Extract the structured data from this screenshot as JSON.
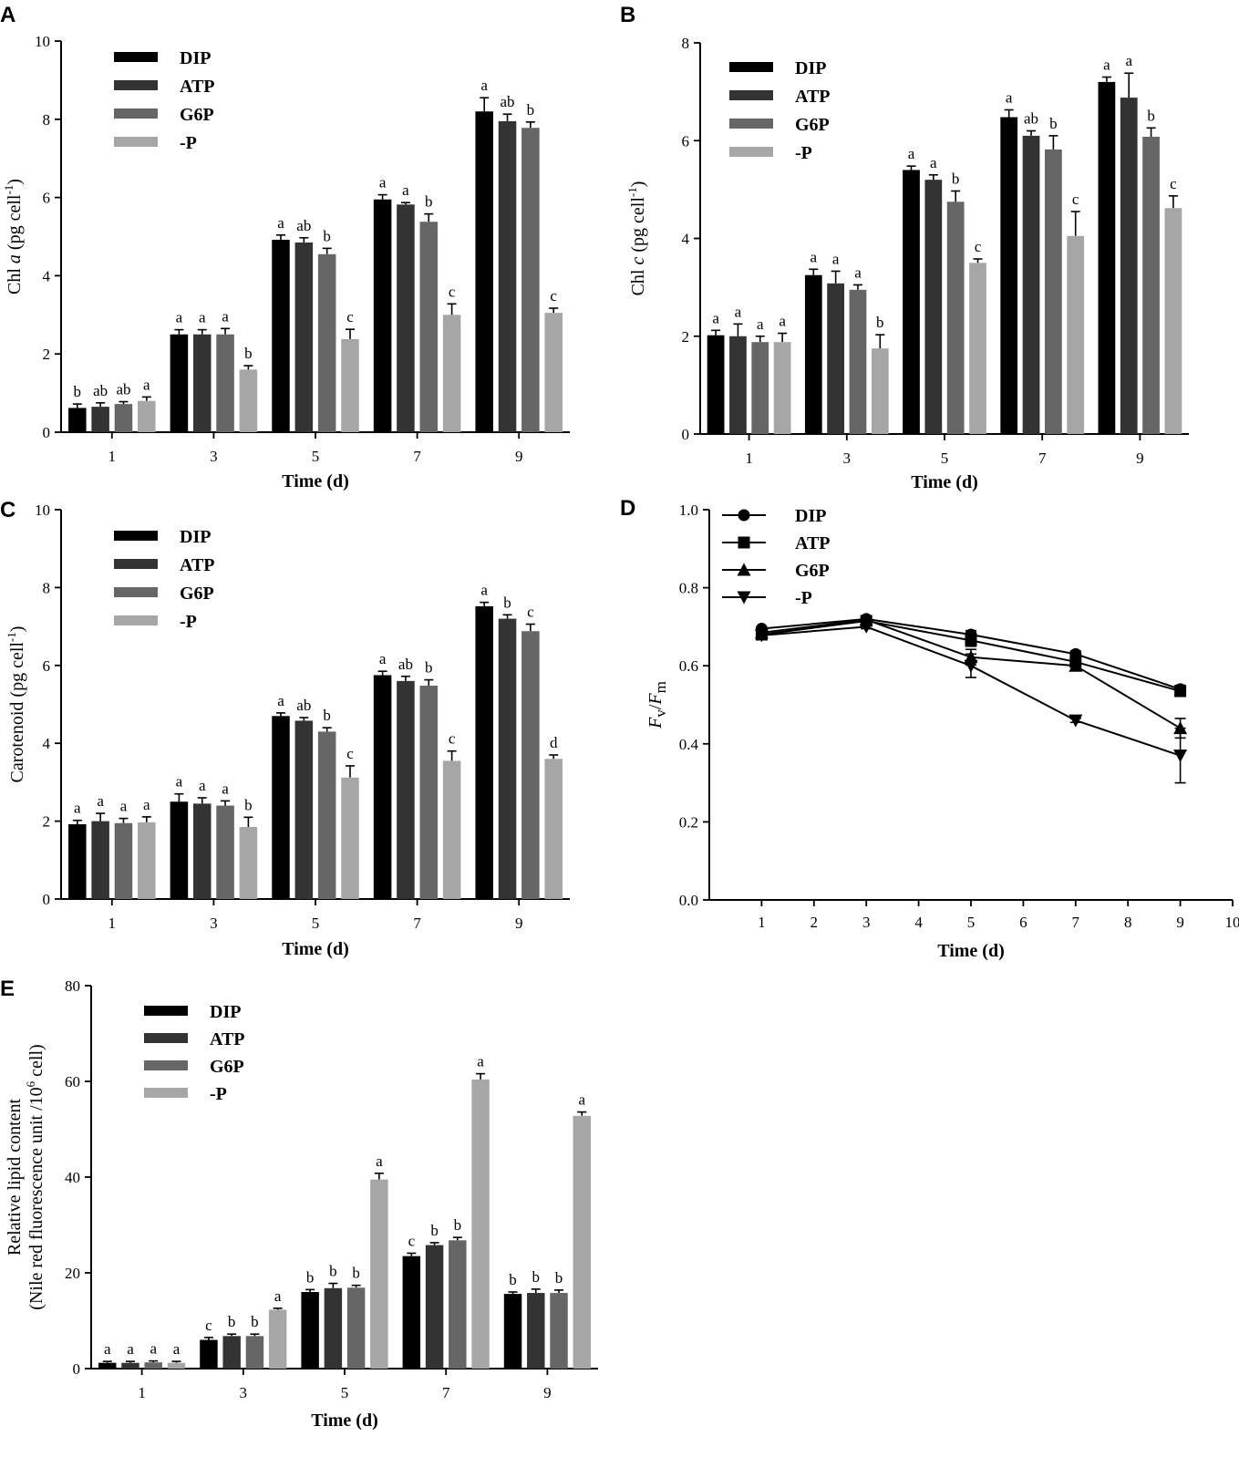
{
  "colors": {
    "DIP": "#000000",
    "ATP": "#333333",
    "G6P": "#666666",
    "-P": "#a6a6a6"
  },
  "chart_data": [
    {
      "panel": "A",
      "type": "bar",
      "xlabel": "Time (d)",
      "ylabel_parts": [
        "Chl ",
        "a",
        " (pg cell",
        "-1",
        ")"
      ],
      "ylim": [
        0,
        10
      ],
      "yticks": [
        "0",
        "2",
        "4",
        "6",
        "8",
        "10"
      ],
      "categories": [
        "1",
        "3",
        "5",
        "7",
        "9"
      ],
      "series": [
        {
          "name": "DIP",
          "values": [
            0.62,
            2.5,
            4.92,
            5.95,
            8.2
          ],
          "errors": [
            0.1,
            0.12,
            0.12,
            0.12,
            0.35
          ],
          "labels": [
            "b",
            "a",
            "a",
            "a",
            "a"
          ]
        },
        {
          "name": "ATP",
          "values": [
            0.65,
            2.5,
            4.85,
            5.82,
            7.95
          ],
          "errors": [
            0.1,
            0.12,
            0.12,
            0.05,
            0.18
          ],
          "labels": [
            "ab",
            "a",
            "ab",
            "a",
            "ab"
          ]
        },
        {
          "name": "G6P",
          "values": [
            0.72,
            2.5,
            4.55,
            5.38,
            7.78
          ],
          "errors": [
            0.06,
            0.15,
            0.15,
            0.2,
            0.15
          ],
          "labels": [
            "ab",
            "a",
            "b",
            "b",
            "b"
          ]
        },
        {
          "name": "-P",
          "values": [
            0.8,
            1.6,
            2.38,
            3.0,
            3.05
          ],
          "errors": [
            0.1,
            0.1,
            0.25,
            0.28,
            0.12
          ],
          "labels": [
            "a",
            "b",
            "c",
            "c",
            "c"
          ]
        }
      ],
      "legend": [
        "DIP",
        "ATP",
        "G6P",
        "-P"
      ]
    },
    {
      "panel": "B",
      "type": "bar",
      "xlabel": "Time (d)",
      "ylabel_parts": [
        "Chl ",
        "c",
        " (pg cell",
        "-1",
        ")"
      ],
      "ylim": [
        0,
        8
      ],
      "yticks": [
        "0",
        "2",
        "4",
        "6",
        "8"
      ],
      "categories": [
        "1",
        "3",
        "5",
        "7",
        "9"
      ],
      "series": [
        {
          "name": "DIP",
          "values": [
            2.02,
            3.25,
            5.4,
            6.48,
            7.2
          ],
          "errors": [
            0.1,
            0.12,
            0.08,
            0.15,
            0.1
          ],
          "labels": [
            "a",
            "a",
            "a",
            "a",
            "a"
          ]
        },
        {
          "name": "ATP",
          "values": [
            2.0,
            3.08,
            5.2,
            6.1,
            6.88
          ],
          "errors": [
            0.25,
            0.25,
            0.1,
            0.1,
            0.5
          ],
          "labels": [
            "a",
            "a",
            "a",
            "ab",
            "a"
          ]
        },
        {
          "name": "G6P",
          "values": [
            1.88,
            2.95,
            4.75,
            5.82,
            6.08
          ],
          "errors": [
            0.12,
            0.1,
            0.22,
            0.28,
            0.18
          ],
          "labels": [
            "a",
            "a",
            "b",
            "b",
            "b"
          ]
        },
        {
          "name": "-P",
          "values": [
            1.88,
            1.75,
            3.5,
            4.05,
            4.62
          ],
          "errors": [
            0.18,
            0.28,
            0.08,
            0.5,
            0.25
          ],
          "labels": [
            "a",
            "b",
            "c",
            "c",
            "c"
          ]
        }
      ],
      "legend": [
        "DIP",
        "ATP",
        "G6P",
        "-P"
      ]
    },
    {
      "panel": "C",
      "type": "bar",
      "xlabel": "Time (d)",
      "ylabel_parts": [
        "Carotenoid (pg cell",
        "-1",
        ")"
      ],
      "ylim": [
        0,
        10
      ],
      "yticks": [
        "0",
        "2",
        "4",
        "6",
        "8",
        "10"
      ],
      "categories": [
        "1",
        "3",
        "5",
        "7",
        "9"
      ],
      "series": [
        {
          "name": "DIP",
          "values": [
            1.92,
            2.5,
            4.7,
            5.75,
            7.52
          ],
          "errors": [
            0.1,
            0.2,
            0.08,
            0.1,
            0.1
          ],
          "labels": [
            "a",
            "a",
            "a",
            "a",
            "a"
          ]
        },
        {
          "name": "ATP",
          "values": [
            2.0,
            2.45,
            4.58,
            5.6,
            7.2
          ],
          "errors": [
            0.2,
            0.15,
            0.08,
            0.12,
            0.1
          ],
          "labels": [
            "a",
            "a",
            "ab",
            "ab",
            "b"
          ]
        },
        {
          "name": "G6P",
          "values": [
            1.95,
            2.4,
            4.3,
            5.48,
            6.88
          ],
          "errors": [
            0.12,
            0.12,
            0.1,
            0.15,
            0.18
          ],
          "labels": [
            "a",
            "a",
            "b",
            "b",
            "c"
          ]
        },
        {
          "name": "-P",
          "values": [
            1.97,
            1.85,
            3.12,
            3.55,
            3.6
          ],
          "errors": [
            0.14,
            0.25,
            0.3,
            0.25,
            0.1
          ],
          "labels": [
            "a",
            "b",
            "c",
            "c",
            "d"
          ]
        }
      ],
      "legend": [
        "DIP",
        "ATP",
        "G6P",
        "-P"
      ]
    },
    {
      "panel": "D",
      "type": "line",
      "xlabel": "Time (d)",
      "ylabel_parts": [
        "F",
        "v",
        "/",
        "F",
        "m"
      ],
      "xlim": [
        0,
        10
      ],
      "xticks": [
        "1",
        "2",
        "3",
        "4",
        "5",
        "6",
        "7",
        "8",
        "9",
        "10"
      ],
      "ylim": [
        0.0,
        1.0
      ],
      "yticks": [
        "0.0",
        "0.2",
        "0.4",
        "0.6",
        "0.8",
        "1.0"
      ],
      "x": [
        1,
        3,
        5,
        7,
        9
      ],
      "series": [
        {
          "name": "DIP",
          "marker": "circle",
          "values": [
            0.695,
            0.72,
            0.68,
            0.63,
            0.54
          ],
          "errors": [
            0.005,
            0.005,
            0.01,
            0.008,
            0.01
          ]
        },
        {
          "name": "ATP",
          "marker": "square",
          "values": [
            0.68,
            0.715,
            0.665,
            0.61,
            0.535
          ],
          "errors": [
            0.005,
            0.005,
            0.015,
            0.01,
            0.01
          ]
        },
        {
          "name": "G6P",
          "marker": "triangle-up",
          "values": [
            0.685,
            0.718,
            0.622,
            0.6,
            0.44
          ],
          "errors": [
            0.005,
            0.005,
            0.02,
            0.01,
            0.025
          ]
        },
        {
          "name": "-P",
          "marker": "triangle-down",
          "values": [
            0.678,
            0.7,
            0.6,
            0.46,
            0.37
          ],
          "errors": [
            0.005,
            0.005,
            0.03,
            0.005,
            0.07
          ]
        }
      ],
      "legend": [
        "DIP",
        "ATP",
        "G6P",
        "-P"
      ]
    },
    {
      "panel": "E",
      "type": "bar",
      "xlabel": "Time (d)",
      "ylabel_lines": [
        "Relative lipid content"
      ],
      "ylabel_parts2": [
        "(Nile red fluorescence unit /10",
        "6",
        " cell)"
      ],
      "ylim": [
        0,
        80
      ],
      "yticks": [
        "0",
        "20",
        "40",
        "60",
        "80"
      ],
      "categories": [
        "1",
        "3",
        "5",
        "7",
        "9"
      ],
      "series": [
        {
          "name": "DIP",
          "values": [
            1.2,
            6.0,
            16.0,
            23.5,
            15.6
          ],
          "errors": [
            0.3,
            0.5,
            0.5,
            0.6,
            0.4
          ],
          "labels": [
            "a",
            "c",
            "b",
            "c",
            "b"
          ]
        },
        {
          "name": "ATP",
          "values": [
            1.2,
            6.8,
            16.8,
            25.8,
            15.8
          ],
          "errors": [
            0.3,
            0.4,
            1.0,
            0.5,
            0.8
          ],
          "labels": [
            "a",
            "b",
            "b",
            "b",
            "b"
          ]
        },
        {
          "name": "G6P",
          "values": [
            1.3,
            6.8,
            16.9,
            26.8,
            15.8
          ],
          "errors": [
            0.3,
            0.4,
            0.5,
            0.6,
            0.6
          ],
          "labels": [
            "a",
            "b",
            "b",
            "b",
            "b"
          ]
        },
        {
          "name": "-P",
          "values": [
            1.2,
            12.3,
            39.5,
            60.4,
            52.8
          ],
          "errors": [
            0.3,
            0.3,
            1.3,
            1.2,
            0.8
          ],
          "labels": [
            "a",
            "a",
            "a",
            "a",
            "a"
          ]
        }
      ],
      "legend": [
        "DIP",
        "ATP",
        "G6P",
        "-P"
      ]
    }
  ]
}
